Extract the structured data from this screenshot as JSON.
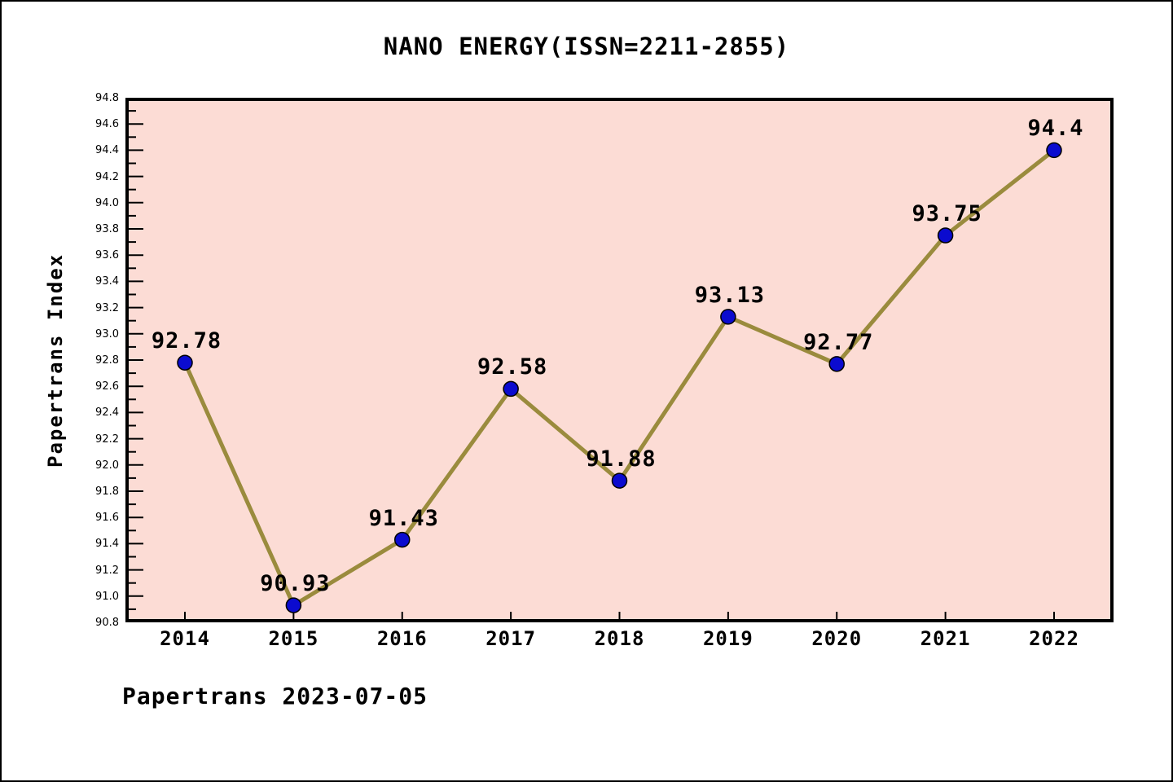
{
  "title": "NANO ENERGY(ISSN=2211-2855)",
  "footer": "Papertrans 2023-07-05",
  "chart_data": {
    "type": "line",
    "title": "NANO ENERGY(ISSN=2211-2855)",
    "xlabel": "",
    "ylabel": "Papertrans Index",
    "categories": [
      "2014",
      "2015",
      "2016",
      "2017",
      "2018",
      "2019",
      "2020",
      "2021",
      "2022"
    ],
    "series": [
      {
        "name": "Papertrans Index",
        "values": [
          92.78,
          90.93,
          91.43,
          92.58,
          91.88,
          93.13,
          92.77,
          93.75,
          94.4
        ]
      }
    ],
    "point_labels": [
      "92.78",
      "90.93",
      "91.43",
      "92.58",
      "91.88",
      "93.13",
      "92.77",
      "93.75",
      "94.4"
    ],
    "ylim": [
      90.8,
      94.8
    ],
    "y_major_step": 0.2,
    "y_minor_step": 0.1,
    "grid": false,
    "legend_position": "none",
    "colors": {
      "line": "#9a8b3d",
      "marker_fill": "#0b0bcf",
      "marker_edge": "#000000",
      "plot_background": "#fcdcd5",
      "page_background": "#ffffff",
      "frame": "#000000",
      "text": "#000000"
    }
  }
}
